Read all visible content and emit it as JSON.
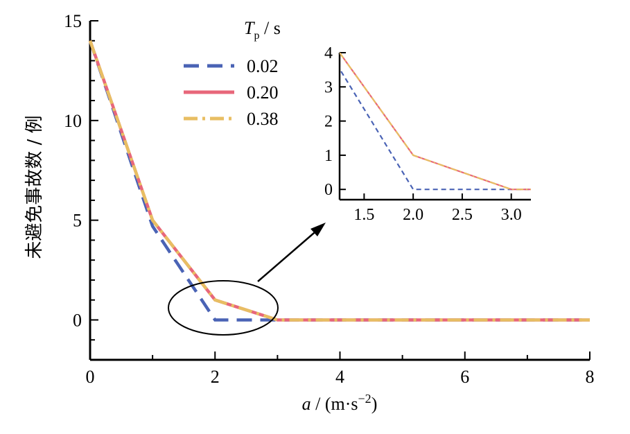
{
  "chart_data": [
    {
      "type": "line",
      "xlabel": {
        "var": "a",
        "unit_open": " / (m·s",
        "unit_sup": "−2",
        "unit_close": ")"
      },
      "ylabel": "未避免事故数 / 例",
      "xlim": [
        0,
        8
      ],
      "ylim": [
        -2,
        15
      ],
      "xticks": [
        "0",
        "2",
        "4",
        "6",
        "8"
      ],
      "yticks": [
        "0",
        "5",
        "10",
        "15"
      ],
      "legend": {
        "title_var": "T",
        "title_sub": "p",
        "title_unit": " / s",
        "placement": "top-center"
      },
      "x": [
        0,
        1,
        2,
        3,
        4,
        5,
        6,
        7,
        8
      ],
      "series": [
        {
          "name": "0.02",
          "values": [
            14,
            4.7,
            0,
            0,
            0,
            0,
            0,
            0,
            0
          ],
          "color": "#4a63b5",
          "style": "dashed"
        },
        {
          "name": "0.20",
          "values": [
            14,
            5,
            1,
            0,
            0,
            0,
            0,
            0,
            0
          ],
          "color": "#e8677a",
          "style": "solid"
        },
        {
          "name": "0.38",
          "values": [
            14,
            5,
            1,
            0,
            0,
            0,
            0,
            0,
            0
          ],
          "color": "#e8be63",
          "style": "dashdot"
        }
      ],
      "annotation": "ellipse around x≈2, y≈0 with arrow pointing to inset"
    },
    {
      "type": "line",
      "role": "inset",
      "xlim": [
        1.25,
        3.2
      ],
      "ylim": [
        -0.3,
        4
      ],
      "xticks": [
        "1.5",
        "2.0",
        "2.5",
        "3.0"
      ],
      "yticks": [
        "0",
        "1",
        "2",
        "3",
        "4"
      ],
      "x": [
        1,
        2,
        3,
        3.2
      ],
      "series": [
        {
          "name": "0.02",
          "values": [
            4.7,
            0,
            0,
            0
          ],
          "color": "#4a63b5",
          "style": "dashed"
        },
        {
          "name": "0.20",
          "values": [
            5,
            1,
            0,
            0
          ],
          "color": "#e8677a",
          "style": "solid"
        },
        {
          "name": "0.38",
          "values": [
            5,
            1,
            0,
            0
          ],
          "color": "#e8be63",
          "style": "dashdot"
        }
      ]
    }
  ]
}
